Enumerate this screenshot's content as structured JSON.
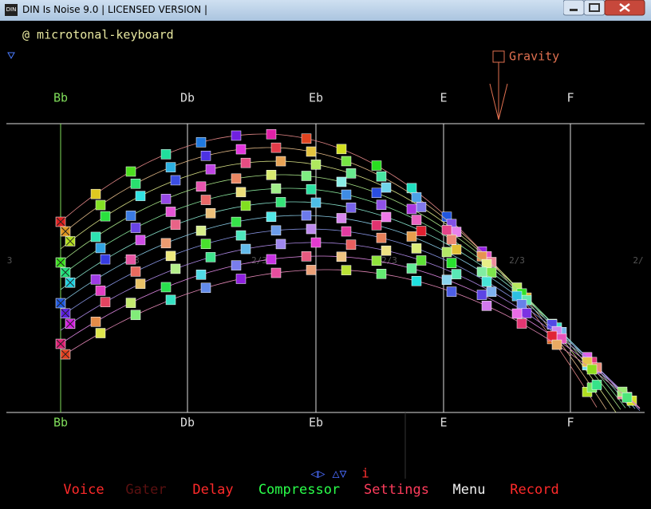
{
  "window": {
    "icon": "DIN",
    "title": "DIN Is Noise 9.0 | LICENSED VERSION |"
  },
  "app": {
    "mode": "@ microtonal-keyboard",
    "gravity": "Gravity",
    "notes_top": [
      "Bb",
      "Db",
      "Eb",
      "E",
      "F"
    ],
    "notes_bottom": [
      "Bb",
      "Db",
      "Eb",
      "E",
      "F"
    ],
    "ratio_labels": [
      "3",
      "2/3",
      "2/3",
      "2/3",
      "2/3",
      "2/"
    ],
    "nav": "◁▷ △▽",
    "info": "i",
    "menu": [
      "Voice",
      "Gater",
      "Delay",
      "Compressor",
      "Settings",
      "Menu",
      "Record"
    ]
  }
}
